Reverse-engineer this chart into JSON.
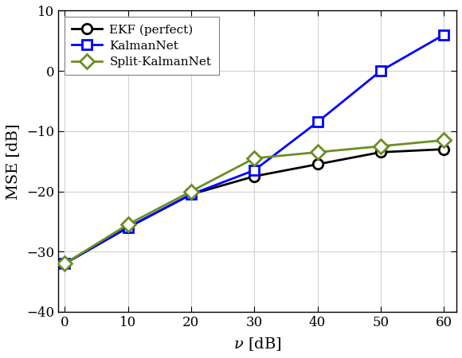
{
  "x": [
    0,
    10,
    20,
    30,
    40,
    50,
    60
  ],
  "ekf_perfect": [
    -32.0,
    -26.0,
    -20.5,
    -17.5,
    -15.5,
    -13.5,
    -13.0
  ],
  "kalmannet": [
    -32.0,
    -26.0,
    -20.5,
    -16.5,
    -8.5,
    0.0,
    6.0
  ],
  "split_kalmannet": [
    -32.0,
    -25.5,
    -20.0,
    -14.5,
    -13.5,
    -12.5,
    -11.5
  ],
  "ekf_color": "#000000",
  "kalmannet_color": "#0000ff",
  "split_color": "#6b8e23",
  "xlabel": "$\\nu$ [dB]",
  "ylabel": "MSE [dB]",
  "xlim": [
    -1,
    62
  ],
  "ylim": [
    -40,
    10
  ],
  "xticks": [
    0,
    10,
    20,
    30,
    40,
    50,
    60
  ],
  "yticks": [
    -40,
    -30,
    -20,
    -10,
    0,
    10
  ],
  "legend_ekf": "EKF (perfect)",
  "legend_kalmannet": "KalmanNet",
  "legend_split": "Split-KalmanNet",
  "linewidth": 2.0,
  "markersize": 9,
  "grid_color": "#d3d3d3",
  "background_color": "#ffffff"
}
